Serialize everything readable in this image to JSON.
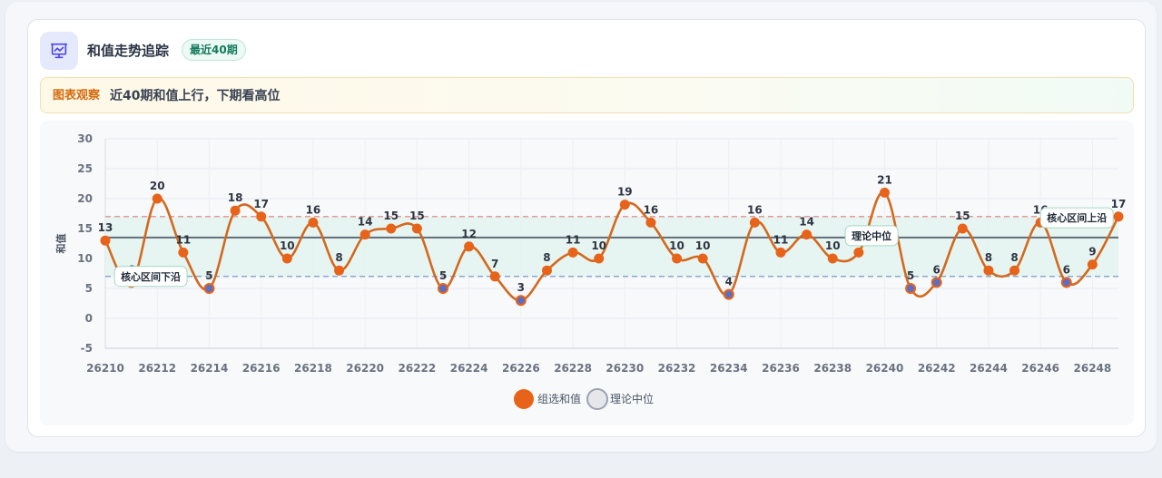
{
  "header": {
    "title": "和值走势追踪",
    "badge": "最近40期"
  },
  "insight": {
    "label": "图表观察",
    "text": "近40期和值上行，下期看高位"
  },
  "icons": {
    "header": "presentation-chart-icon"
  },
  "colors": {
    "series": "#e8631a",
    "series_line": "#d2691e",
    "low_point": "#5b6fc2",
    "median": "#4b5563",
    "upper_band": "#e07b7b",
    "lower_band": "#6b8fc4",
    "band_fill": "#e3f5ee"
  },
  "chart_data": {
    "type": "line",
    "x": [
      26210,
      26211,
      26212,
      26213,
      26214,
      26215,
      26216,
      26217,
      26218,
      26219,
      26220,
      26221,
      26222,
      26223,
      26224,
      26225,
      26226,
      26227,
      26228,
      26229,
      26230,
      26231,
      26232,
      26233,
      26234,
      26235,
      26236,
      26237,
      26238,
      26239,
      26240,
      26241,
      26242,
      26243,
      26244,
      26245,
      26246,
      26247,
      26248,
      26249
    ],
    "x_tick_labels": [
      "26210",
      "26212",
      "26214",
      "26216",
      "26218",
      "26220",
      "26222",
      "26224",
      "26226",
      "26228",
      "26230",
      "26232",
      "26234",
      "26236",
      "26238",
      "26240",
      "26242",
      "26244",
      "26246",
      "26248"
    ],
    "series": [
      {
        "name": "组选和值",
        "values": [
          13,
          6,
          20,
          11,
          5,
          18,
          17,
          10,
          16,
          8,
          14,
          15,
          15,
          5,
          12,
          7,
          3,
          8,
          11,
          10,
          19,
          16,
          10,
          10,
          4,
          16,
          11,
          14,
          10,
          11,
          21,
          5,
          6,
          15,
          8,
          8,
          16,
          6,
          9,
          17
        ]
      }
    ],
    "median": {
      "name": "理论中位",
      "value": 13.5,
      "label": "理论中位"
    },
    "band": {
      "lower": 7,
      "upper": 17,
      "lower_label": "核心区间下沿",
      "upper_label": "核心区间上沿"
    },
    "ylabel": "和值",
    "ylim": [
      -5,
      30
    ],
    "yticks": [
      -5,
      0,
      5,
      10,
      15,
      20,
      25,
      30
    ],
    "grid": true,
    "legend": [
      "组选和值",
      "理论中位"
    ],
    "legend_position": "bottom-center"
  }
}
